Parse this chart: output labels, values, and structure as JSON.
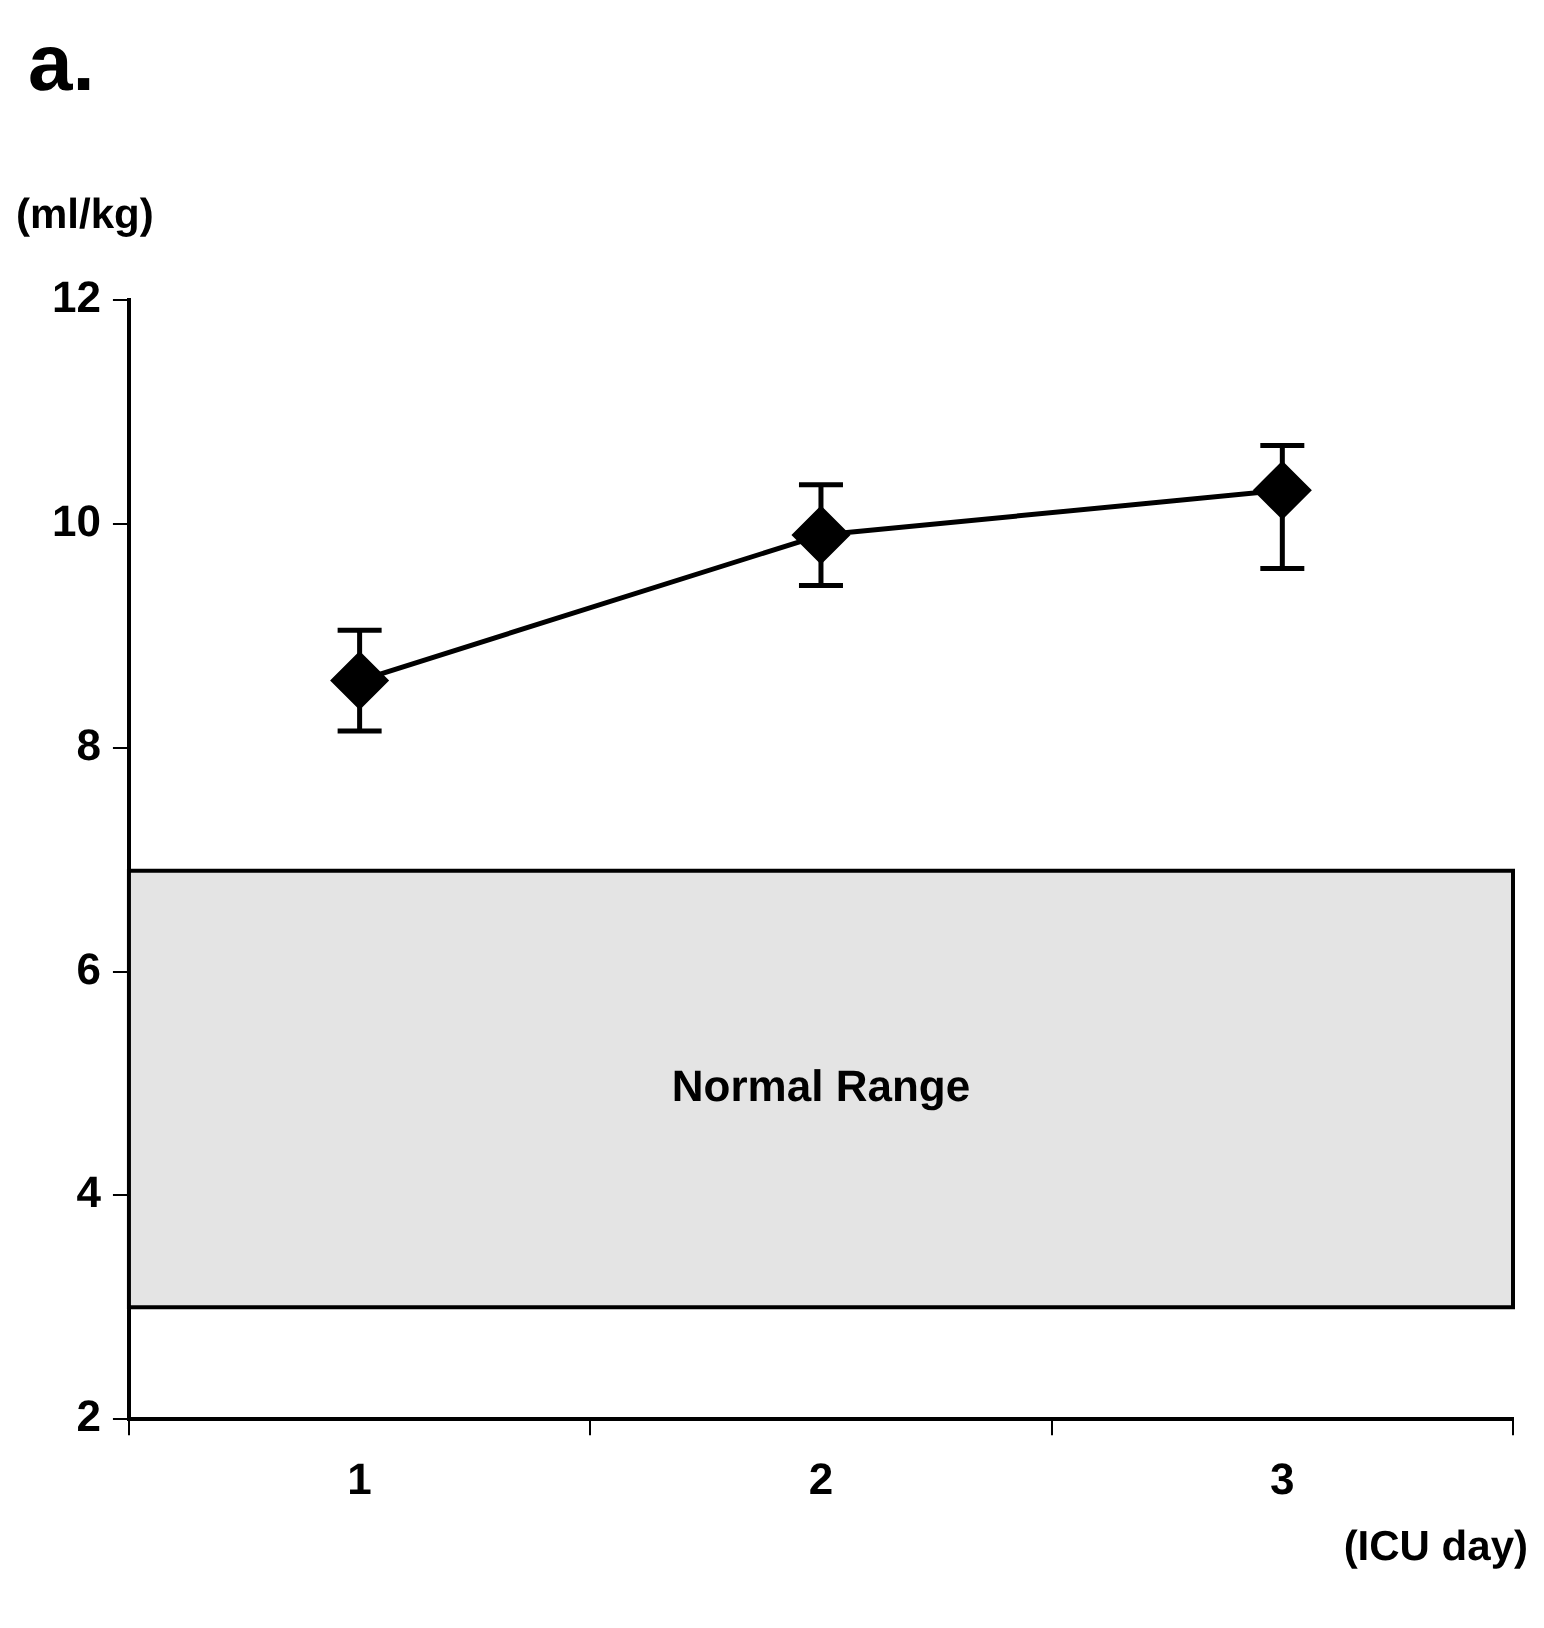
{
  "chart_data": {
    "type": "line",
    "title": "a.",
    "ylabel": "(ml/kg)",
    "xlabel": "(ICU day)",
    "categories": [
      "1",
      "2",
      "3"
    ],
    "series": [
      {
        "color": "#000000",
        "values": [
          8.6,
          9.9,
          10.3
        ],
        "errors": [
          0.45,
          0.45,
          [
            9.6,
            10.7
          ]
        ]
      }
    ],
    "ylim": [
      2,
      12
    ],
    "yticks": [
      2,
      4,
      6,
      8,
      10,
      12
    ],
    "bands": [
      {
        "axis": "y",
        "from": 3,
        "to": 6.9,
        "label": "Normal Range",
        "color": "#e4e4e4"
      }
    ],
    "marker": "diamond",
    "line_style": "solid",
    "grid": false,
    "legend": false
  }
}
